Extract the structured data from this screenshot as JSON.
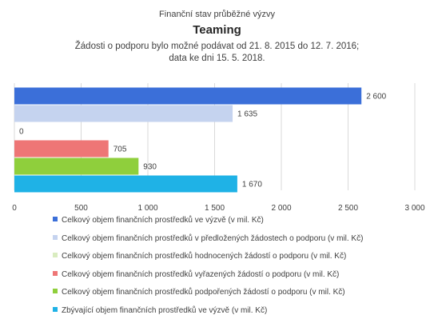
{
  "header": {
    "subtitle": "Finanční stav průběžné výzvy",
    "title": "Teaming",
    "note_line1": "Žádosti o podporu bylo možné  podávat od 21. 8. 2015 do 12. 7. 2016;",
    "note_line2": "data ke dni 15. 5. 2018."
  },
  "chart_data": {
    "type": "bar",
    "orientation": "horizontal",
    "xlim": [
      0,
      3000
    ],
    "xticks": [
      0,
      500,
      1000,
      1500,
      2000,
      2500,
      3000
    ],
    "xtick_labels": [
      "0",
      "500",
      "1 000",
      "1 500",
      "2 000",
      "2 500",
      "3 000"
    ],
    "grid": "vertical",
    "legend_position": "bottom",
    "series": [
      {
        "name": "Celkový objem finančních prostředků ve výzvě (v mil. Kč)",
        "value": 2600,
        "label": "2 600",
        "color": "#3b6fd9"
      },
      {
        "name": "Celkový objem finančních prostředků v předložených žádostech o podporu (v mil. Kč)",
        "value": 1635,
        "label": "1 635",
        "color": "#c5d3ef"
      },
      {
        "name": "Celkový objem finančních prostředků hodnocených žádostí o podporu (v mil. Kč)",
        "value": 0,
        "label": "0",
        "color": "#d9ecc0"
      },
      {
        "name": "Celkový objem finančních prostředků vyřazených žádostí o podporu (v mil. Kč)",
        "value": 705,
        "label": "705",
        "color": "#ee7676"
      },
      {
        "name": "Celkový objem finančních prostředků podpořených žádostí o podporu (v mil. Kč)",
        "value": 930,
        "label": "930",
        "color": "#8fcf3c"
      },
      {
        "name": "Zbývající objem finančních prostředků ve výzvě (v mil. Kč)",
        "value": 1670,
        "label": "1 670",
        "color": "#1fb2e6"
      }
    ]
  }
}
